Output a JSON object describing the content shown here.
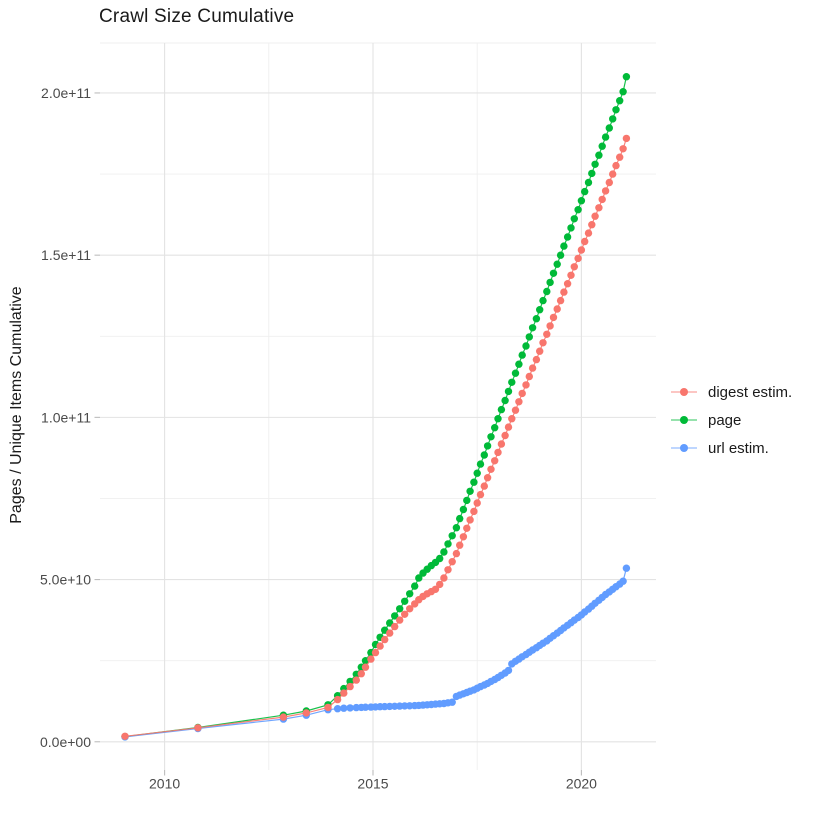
{
  "title": "Crawl Size Cumulative",
  "colors": {
    "background": "#ffffff",
    "grid_major": "#e3e3e3",
    "grid_minor": "#efefef",
    "tick_mark": "#bdbdbd",
    "tick_label": "#4a4a4a",
    "text": "#1a1a1a",
    "digest": "#F8766D",
    "page": "#00BA38",
    "url": "#619CFF"
  },
  "chart_data": {
    "type": "line",
    "points": true,
    "title": "Crawl Size Cumulative",
    "xlabel": "",
    "ylabel": "Pages / Unique Items Cumulative",
    "legend_position": "right",
    "grid": true,
    "xlim": [
      2008.45,
      2021.79
    ],
    "ylim": [
      -8700000000.0,
      215400000000.0
    ],
    "x_ticks": [
      {
        "value": 2010,
        "label": "2010"
      },
      {
        "value": 2015,
        "label": "2015"
      },
      {
        "value": 2020,
        "label": "2020"
      }
    ],
    "x_minor_ticks": [
      2012.5,
      2017.5
    ],
    "y_ticks": [
      {
        "value": 0,
        "label": "0.0e+00"
      },
      {
        "value": 50000000000.0,
        "label": "5.0e+10"
      },
      {
        "value": 100000000000.0,
        "label": "1.0e+11"
      },
      {
        "value": 150000000000.0,
        "label": "1.5e+11"
      },
      {
        "value": 200000000000.0,
        "label": "2.0e+11"
      }
    ],
    "y_minor_ticks": [
      25000000000.0,
      75000000000.0,
      125000000000.0,
      175000000000.0
    ],
    "x": [
      2009.05,
      2010.8,
      2012.85,
      2013.4,
      2013.92,
      2014.15,
      2014.3,
      2014.45,
      2014.6,
      2014.72,
      2014.82,
      2014.95,
      2015.06,
      2015.17,
      2015.28,
      2015.4,
      2015.52,
      2015.64,
      2015.76,
      2015.88,
      2016.0,
      2016.1,
      2016.2,
      2016.3,
      2016.4,
      2016.5,
      2016.6,
      2016.7,
      2016.8,
      2016.9,
      2017.0,
      2017.08,
      2017.17,
      2017.25,
      2017.33,
      2017.42,
      2017.5,
      2017.58,
      2017.67,
      2017.75,
      2017.83,
      2017.92,
      2018.0,
      2018.08,
      2018.17,
      2018.25,
      2018.33,
      2018.42,
      2018.5,
      2018.58,
      2018.67,
      2018.75,
      2018.83,
      2018.92,
      2019.0,
      2019.08,
      2019.17,
      2019.25,
      2019.33,
      2019.42,
      2019.5,
      2019.58,
      2019.67,
      2019.75,
      2019.83,
      2019.92,
      2020.0,
      2020.08,
      2020.17,
      2020.25,
      2020.33,
      2020.42,
      2020.5,
      2020.58,
      2020.67,
      2020.75,
      2020.83,
      2020.92,
      2021.0,
      2021.08
    ],
    "series": [
      {
        "name": "digest estim.",
        "color": "#F8766D",
        "values": [
          1700000000.0,
          4300000000.0,
          7600000000.0,
          8900000000.0,
          10600000000.0,
          13000000000.0,
          15000000000.0,
          17000000000.0,
          19000000000.0,
          21000000000.0,
          23000000000.0,
          25500000000.0,
          27500000000.0,
          29500000000.0,
          31500000000.0,
          33500000000.0,
          35500000000.0,
          37500000000.0,
          39300000000.0,
          41000000000.0,
          42500000000.0,
          43800000000.0,
          44800000000.0,
          45600000000.0,
          46300000000.0,
          47000000000.0,
          48500000000.0,
          50500000000.0,
          53000000000.0,
          55500000000.0,
          58000000000.0,
          60600000000.0,
          63200000000.0,
          65800000000.0,
          68400000000.0,
          71000000000.0,
          73600000000.0,
          76200000000.0,
          78800000000.0,
          81400000000.0,
          84000000000.0,
          86600000000.0,
          89200000000.0,
          91800000000.0,
          94400000000.0,
          97000000000.0,
          99600000000.0,
          102200000000.0,
          104800000000.0,
          107400000000.0,
          110000000000.0,
          112600000000.0,
          115200000000.0,
          117800000000.0,
          120400000000.0,
          123000000000.0,
          125600000000.0,
          128200000000.0,
          130800000000.0,
          133400000000.0,
          136000000000.0,
          138600000000.0,
          141200000000.0,
          143800000000.0,
          146400000000.0,
          149000000000.0,
          151600000000.0,
          154200000000.0,
          156800000000.0,
          159400000000.0,
          162000000000.0,
          164600000000.0,
          167200000000.0,
          169800000000.0,
          172400000000.0,
          175000000000.0,
          177600000000.0,
          180200000000.0,
          182800000000.0,
          186000000000.0
        ]
      },
      {
        "name": "page",
        "color": "#00BA38",
        "values": [
          1600000000.0,
          4400000000.0,
          8200000000.0,
          9500000000.0,
          11400000000.0,
          14200000000.0,
          16400000000.0,
          18600000000.0,
          20800000000.0,
          23000000000.0,
          25000000000.0,
          27500000000.0,
          30000000000.0,
          32200000000.0,
          34400000000.0,
          36600000000.0,
          38800000000.0,
          41000000000.0,
          43300000000.0,
          45600000000.0,
          48000000000.0,
          50500000000.0,
          52000000000.0,
          53200000000.0,
          54300000000.0,
          55300000000.0,
          56500000000.0,
          58500000000.0,
          61000000000.0,
          63500000000.0,
          66000000000.0,
          68800000000.0,
          71600000000.0,
          74400000000.0,
          77200000000.0,
          80000000000.0,
          82800000000.0,
          85600000000.0,
          88400000000.0,
          91200000000.0,
          94000000000.0,
          96800000000.0,
          99600000000.0,
          102400000000.0,
          105200000000.0,
          108000000000.0,
          110800000000.0,
          113600000000.0,
          116400000000.0,
          119200000000.0,
          122000000000.0,
          124800000000.0,
          127600000000.0,
          130400000000.0,
          133200000000.0,
          136000000000.0,
          138800000000.0,
          141600000000.0,
          144400000000.0,
          147200000000.0,
          150000000000.0,
          152800000000.0,
          155600000000.0,
          158400000000.0,
          161200000000.0,
          164000000000.0,
          166800000000.0,
          169600000000.0,
          172400000000.0,
          175200000000.0,
          178000000000.0,
          180800000000.0,
          183600000000.0,
          186400000000.0,
          189200000000.0,
          192000000000.0,
          194800000000.0,
          197600000000.0,
          200400000000.0,
          205000000000.0
        ]
      },
      {
        "name": "url estim.",
        "color": "#619CFF",
        "values": [
          1500000000.0,
          4100000000.0,
          7000000000.0,
          8200000000.0,
          9900000000.0,
          10200000000.0,
          10350000000.0,
          10450000000.0,
          10550000000.0,
          10600000000.0,
          10650000000.0,
          10700000000.0,
          10750000000.0,
          10800000000.0,
          10850000000.0,
          10900000000.0,
          10950000000.0,
          11000000000.0,
          11050000000.0,
          11100000000.0,
          11150000000.0,
          11200000000.0,
          11300000000.0,
          11400000000.0,
          11500000000.0,
          11600000000.0,
          11700000000.0,
          11800000000.0,
          12000000000.0,
          12200000000.0,
          14000000000.0,
          14400000000.0,
          14800000000.0,
          15200000000.0,
          15600000000.0,
          16000000000.0,
          16500000000.0,
          17000000000.0,
          17500000000.0,
          18000000000.0,
          18600000000.0,
          19200000000.0,
          19800000000.0,
          20500000000.0,
          21200000000.0,
          22000000000.0,
          24000000000.0,
          24800000000.0,
          25500000000.0,
          26200000000.0,
          26900000000.0,
          27600000000.0,
          28300000000.0,
          29000000000.0,
          29700000000.0,
          30400000000.0,
          31100000000.0,
          31900000000.0,
          32700000000.0,
          33500000000.0,
          34300000000.0,
          35100000000.0,
          35900000000.0,
          36700000000.0,
          37500000000.0,
          38300000000.0,
          39100000000.0,
          40000000000.0,
          40900000000.0,
          41800000000.0,
          42700000000.0,
          43600000000.0,
          44500000000.0,
          45400000000.0,
          46200000000.0,
          47000000000.0,
          47800000000.0,
          48600000000.0,
          49500000000.0,
          53500000000.0
        ]
      }
    ]
  }
}
